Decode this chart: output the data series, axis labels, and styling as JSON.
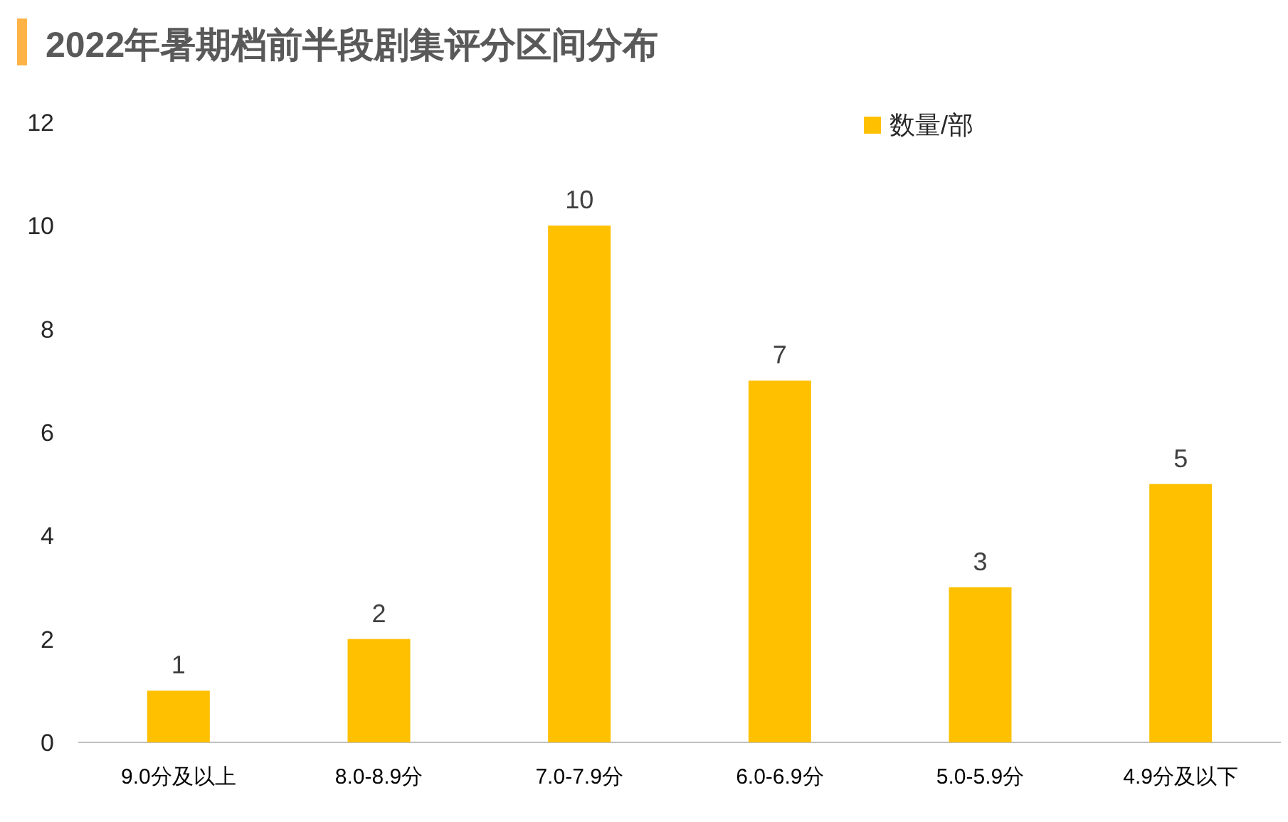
{
  "chart_data": {
    "type": "bar",
    "title": "2022年暑期档前半段剧集评分区间分布",
    "categories": [
      "9.0分及以上",
      "8.0-8.9分",
      "7.0-7.9分",
      "6.0-6.9分",
      "5.0-5.9分",
      "4.9分及以下"
    ],
    "series": [
      {
        "name": "数量/部",
        "color": "#ffc000",
        "values": [
          1,
          2,
          10,
          7,
          3,
          5
        ]
      }
    ],
    "ylim": [
      0,
      12
    ],
    "yticks": [
      0,
      2,
      4,
      6,
      8,
      10,
      12
    ],
    "legend": "top right",
    "data_labels": true
  }
}
